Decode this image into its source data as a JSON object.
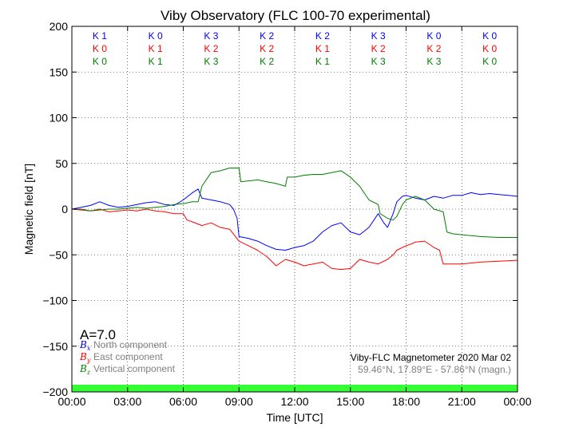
{
  "chart_data": {
    "type": "line",
    "title": "Viby Observatory (FLC 100-70 experimental)",
    "xlabel": "Time [UTC]",
    "ylabel": "Magnetic field [nT]",
    "xlim": [
      0,
      24
    ],
    "ylim": [
      -200,
      200
    ],
    "grid": true,
    "x_tick_values": [
      0,
      3,
      6,
      9,
      12,
      15,
      18,
      21,
      24
    ],
    "x_tick_labels": [
      "00:00",
      "03:00",
      "06:00",
      "09:00",
      "12:00",
      "15:00",
      "18:00",
      "21:00",
      "00:00"
    ],
    "y_tick_values": [
      -200,
      -150,
      -100,
      -50,
      0,
      50,
      100,
      150,
      200
    ],
    "y_tick_labels": [
      "−200",
      "−150",
      "−100",
      "−50",
      "0",
      "50",
      "100",
      "150",
      "200"
    ],
    "k_indices": {
      "x_centers": [
        1.5,
        4.5,
        7.5,
        10.5,
        13.5,
        16.5,
        19.5,
        22.5
      ],
      "rows": [
        {
          "color": "#0000ff",
          "labels": [
            "K 1",
            "K 0",
            "K 3",
            "K 2",
            "K 2",
            "K 3",
            "K 0",
            "K 0"
          ]
        },
        {
          "color": "#ff0000",
          "labels": [
            "K 0",
            "K 1",
            "K 2",
            "K 2",
            "K 1",
            "K 2",
            "K 2",
            "K 0"
          ]
        },
        {
          "color": "#008000",
          "labels": [
            "K 0",
            "K 1",
            "K 3",
            "K 2",
            "K 1",
            "K 3",
            "K 3",
            "K 0"
          ]
        }
      ]
    },
    "a_index": "A=7.0",
    "status_bar_color": "#33ff33",
    "legend": {
      "placement": "bottom-left",
      "entries": [
        {
          "symbol": "B",
          "sub": "x",
          "text": "North component",
          "color": "#0000ff"
        },
        {
          "symbol": "B",
          "sub": "y",
          "text": "East component",
          "color": "#ff0000"
        },
        {
          "symbol": "B",
          "sub": "z",
          "text": "Vertical component",
          "color": "#008000"
        }
      ]
    },
    "info_lines": [
      {
        "text": "Viby-FLC Magnetometer 2020 Mar 02",
        "color": "#000000"
      },
      {
        "text": "59.46°N, 17.89°E - 57.86°N (magn.)",
        "color": "#808080"
      }
    ],
    "series": [
      {
        "name": "North component",
        "color": "#0000ff",
        "points": [
          [
            0,
            0
          ],
          [
            0.5,
            2
          ],
          [
            1,
            4
          ],
          [
            1.5,
            8
          ],
          [
            2,
            4
          ],
          [
            2.5,
            2
          ],
          [
            3,
            3
          ],
          [
            3.5,
            5
          ],
          [
            4,
            7
          ],
          [
            4.5,
            8
          ],
          [
            5,
            5
          ],
          [
            5.5,
            4
          ],
          [
            6,
            10
          ],
          [
            6.5,
            18
          ],
          [
            6.8,
            22
          ],
          [
            7,
            12
          ],
          [
            7.5,
            10
          ],
          [
            8,
            8
          ],
          [
            8.5,
            5
          ],
          [
            8.7,
            0
          ],
          [
            8.9,
            -10
          ],
          [
            9,
            -30
          ],
          [
            9.5,
            -32
          ],
          [
            10,
            -35
          ],
          [
            10.5,
            -40
          ],
          [
            11,
            -44
          ],
          [
            11.5,
            -45
          ],
          [
            12,
            -42
          ],
          [
            12.5,
            -40
          ],
          [
            13,
            -35
          ],
          [
            13.5,
            -25
          ],
          [
            14,
            -18
          ],
          [
            14.5,
            -15
          ],
          [
            15,
            -25
          ],
          [
            15.5,
            -28
          ],
          [
            16,
            -20
          ],
          [
            16.5,
            -5
          ],
          [
            16.8,
            -15
          ],
          [
            17,
            -20
          ],
          [
            17.3,
            -5
          ],
          [
            17.5,
            8
          ],
          [
            17.8,
            14
          ],
          [
            18,
            15
          ],
          [
            18.5,
            12
          ],
          [
            19,
            10
          ],
          [
            19.5,
            14
          ],
          [
            20,
            12
          ],
          [
            20.5,
            15
          ],
          [
            21,
            15
          ],
          [
            21.5,
            18
          ],
          [
            22,
            16
          ],
          [
            22.5,
            17
          ],
          [
            23,
            16
          ],
          [
            23.5,
            15
          ],
          [
            24,
            14
          ]
        ]
      },
      {
        "name": "East component",
        "color": "#ff0000",
        "points": [
          [
            0,
            0
          ],
          [
            0.5,
            -1
          ],
          [
            1,
            -2
          ],
          [
            1.5,
            0
          ],
          [
            2,
            -3
          ],
          [
            2.5,
            -2
          ],
          [
            3,
            -1
          ],
          [
            3.5,
            -2
          ],
          [
            4,
            0
          ],
          [
            4.5,
            -2
          ],
          [
            5,
            -3
          ],
          [
            5.5,
            -5
          ],
          [
            6,
            -5
          ],
          [
            6.2,
            -12
          ],
          [
            6.5,
            -14
          ],
          [
            7,
            -18
          ],
          [
            7.5,
            -15
          ],
          [
            8,
            -20
          ],
          [
            8.5,
            -22
          ],
          [
            9,
            -35
          ],
          [
            9.5,
            -40
          ],
          [
            10,
            -45
          ],
          [
            10.5,
            -52
          ],
          [
            11,
            -62
          ],
          [
            11.5,
            -55
          ],
          [
            12,
            -58
          ],
          [
            12.5,
            -62
          ],
          [
            13,
            -60
          ],
          [
            13.5,
            -58
          ],
          [
            14,
            -65
          ],
          [
            14.5,
            -66
          ],
          [
            15,
            -65
          ],
          [
            15.5,
            -55
          ],
          [
            16,
            -58
          ],
          [
            16.5,
            -60
          ],
          [
            17,
            -55
          ],
          [
            17.3,
            -50
          ],
          [
            17.5,
            -45
          ],
          [
            18,
            -40
          ],
          [
            18.3,
            -38
          ],
          [
            18.5,
            -36
          ],
          [
            19,
            -35
          ],
          [
            19.5,
            -42
          ],
          [
            19.8,
            -45
          ],
          [
            20,
            -60
          ],
          [
            20.5,
            -60
          ],
          [
            21,
            -60
          ],
          [
            22,
            -58
          ],
          [
            23,
            -57
          ],
          [
            24,
            -56
          ]
        ]
      },
      {
        "name": "Vertical component",
        "color": "#008000",
        "points": [
          [
            0,
            0
          ],
          [
            0.5,
            0
          ],
          [
            1,
            -2
          ],
          [
            1.5,
            -1
          ],
          [
            2,
            0
          ],
          [
            2.5,
            0
          ],
          [
            3,
            1
          ],
          [
            3.5,
            2
          ],
          [
            4,
            1
          ],
          [
            4.5,
            2
          ],
          [
            5,
            3
          ],
          [
            5.5,
            5
          ],
          [
            6,
            6
          ],
          [
            6.5,
            8
          ],
          [
            6.8,
            8
          ],
          [
            7,
            25
          ],
          [
            7.5,
            40
          ],
          [
            8,
            42
          ],
          [
            8.5,
            45
          ],
          [
            9,
            45
          ],
          [
            9.1,
            30
          ],
          [
            10,
            32
          ],
          [
            10.5,
            30
          ],
          [
            11,
            28
          ],
          [
            11.5,
            25
          ],
          [
            11.6,
            35
          ],
          [
            12,
            35
          ],
          [
            12.5,
            37
          ],
          [
            13,
            38
          ],
          [
            13.5,
            38
          ],
          [
            14,
            40
          ],
          [
            14.5,
            42
          ],
          [
            15,
            35
          ],
          [
            15.5,
            25
          ],
          [
            16,
            10
          ],
          [
            16.5,
            5
          ],
          [
            16.6,
            -5
          ],
          [
            17,
            -10
          ],
          [
            17.3,
            -12
          ],
          [
            17.5,
            -8
          ],
          [
            17.8,
            5
          ],
          [
            18,
            10
          ],
          [
            18.5,
            14
          ],
          [
            19,
            10
          ],
          [
            19.5,
            0
          ],
          [
            20,
            -3
          ],
          [
            20.2,
            -25
          ],
          [
            20.5,
            -27
          ],
          [
            21,
            -28
          ],
          [
            22,
            -30
          ],
          [
            23,
            -31
          ],
          [
            24,
            -31
          ]
        ]
      }
    ]
  }
}
